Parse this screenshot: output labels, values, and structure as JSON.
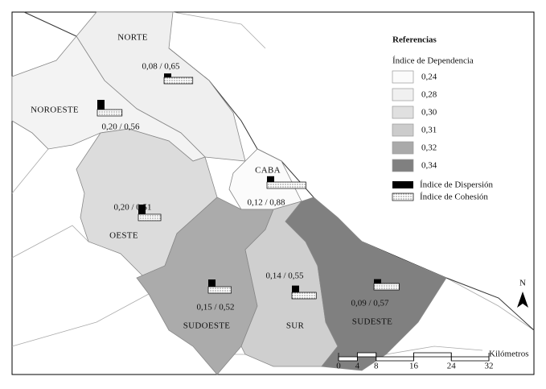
{
  "map": {
    "regions": [
      {
        "name": "NORTE",
        "label": "0,08 / 0,65",
        "dispersion": 0.08,
        "cohesion": 0.65,
        "color": "#efefef"
      },
      {
        "name": "NOROESTE",
        "label": "0,20 / 0,56",
        "dispersion": 0.2,
        "cohesion": 0.56,
        "color": "#f3f3f3"
      },
      {
        "name": "OESTE",
        "label": "0,20 / 0,51",
        "dispersion": 0.2,
        "cohesion": 0.51,
        "color": "#dcdcdc"
      },
      {
        "name": "CABA",
        "label": "0,12 / 0,88",
        "dispersion": 0.12,
        "cohesion": 0.88,
        "color": "#fbfbfb"
      },
      {
        "name": "SUDOESTE",
        "label": "0,15 / 0,52",
        "dispersion": 0.15,
        "cohesion": 0.52,
        "color": "#ababab"
      },
      {
        "name": "SUR",
        "label": "0,14 / 0,55",
        "dispersion": 0.14,
        "cohesion": 0.55,
        "color": "#cfcfcf"
      },
      {
        "name": "SUDESTE",
        "label": "0,09 / 0,57",
        "dispersion": 0.09,
        "cohesion": 0.57,
        "color": "#808080"
      }
    ],
    "legend": {
      "title": "Referencias",
      "subtitle": "Índice de Dependencia",
      "classes": [
        {
          "label": "0,24",
          "color": "#fbfbfb"
        },
        {
          "label": "0,28",
          "color": "#f0f0f0"
        },
        {
          "label": "0,30",
          "color": "#e0e0e0"
        },
        {
          "label": "0,31",
          "color": "#cccccc"
        },
        {
          "label": "0,32",
          "color": "#aaaaaa"
        },
        {
          "label": "0,34",
          "color": "#808080"
        }
      ],
      "dispersion": "Índice de Dispersión",
      "cohesion": "Índice de Cohesión"
    },
    "scale": {
      "title": "Kilómetros",
      "ticks": [
        0,
        4,
        8,
        16,
        24,
        32
      ]
    },
    "north": "N"
  }
}
